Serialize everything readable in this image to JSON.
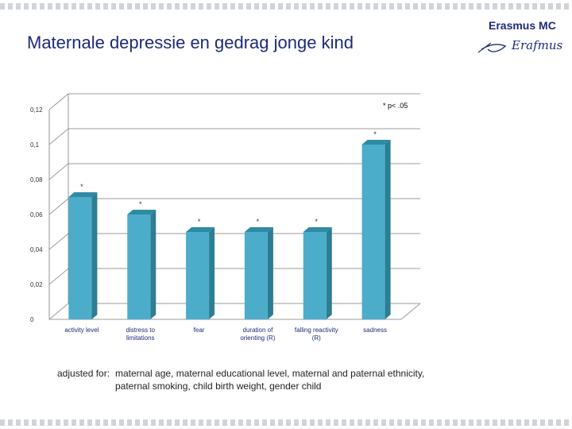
{
  "slide": {
    "title": "Maternale depressie en gedrag jonge kind"
  },
  "logo": {
    "name": "Erasmus MC",
    "signature": "Erafmus"
  },
  "footnote": {
    "label": "adjusted for:",
    "line1": "maternal age, maternal educational level, maternal and paternal ethnicity,",
    "line2": "paternal smoking, child birth weight, gender child"
  },
  "chart_data": {
    "type": "bar",
    "title": "",
    "xlabel": "",
    "ylabel": "",
    "categories": [
      [
        "activity level"
      ],
      [
        "distress to",
        "limitations"
      ],
      [
        "fear"
      ],
      [
        "duration of",
        "orienting (R)"
      ],
      [
        "falling reactivity",
        "(R)"
      ],
      [
        "sadness"
      ]
    ],
    "values": [
      0.07,
      0.06,
      0.05,
      0.05,
      0.05,
      0.1
    ],
    "significance": [
      "*",
      "*",
      "*",
      "*",
      "*",
      "*"
    ],
    "ylim": [
      0,
      0.12
    ],
    "yticks": [
      0,
      0.02,
      0.04,
      0.06,
      0.08,
      0.1,
      0.12
    ],
    "ytick_labels": [
      "0",
      "0,02",
      "0,04",
      "0,06",
      "0,08",
      "0,1",
      "0,12"
    ],
    "legend_note": "* p< .05",
    "grid": true,
    "colors": {
      "bar_front": "#4badc9",
      "bar_side": "#2d7d93",
      "bar_top": "#2f8aa3",
      "grid": "#7a7a7a",
      "label": "#1d2a78"
    }
  }
}
